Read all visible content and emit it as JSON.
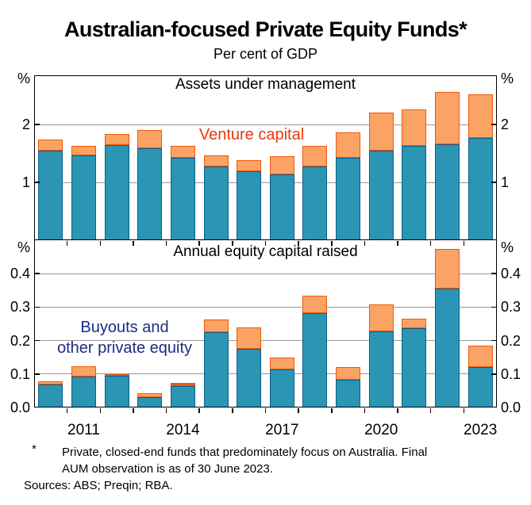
{
  "title": "Australian-focused Private Equity Funds*",
  "subtitle": "Per cent of GDP",
  "panels": [
    {
      "title": "Assets under management",
      "series_label": "Venture capital"
    },
    {
      "title": "Annual equity capital raised",
      "series_label_line1": "Buyouts and",
      "series_label_line2": "other private equity"
    }
  ],
  "axis": {
    "percent": "%",
    "top_ticks": [
      {
        "label": "2",
        "value": 2
      },
      {
        "label": "1",
        "value": 1
      }
    ],
    "bottom_ticks": [
      {
        "label": "0.4",
        "value": 0.4
      },
      {
        "label": "0.3",
        "value": 0.3
      },
      {
        "label": "0.2",
        "value": 0.2
      },
      {
        "label": "0.1",
        "value": 0.1
      },
      {
        "label": "0.0",
        "value": 0
      }
    ],
    "year_labels": [
      {
        "label": "2011",
        "index": 1
      },
      {
        "label": "2014",
        "index": 4
      },
      {
        "label": "2017",
        "index": 7
      },
      {
        "label": "2020",
        "index": 10
      },
      {
        "label": "2023",
        "index": 13
      }
    ]
  },
  "footnote": {
    "marker": "*",
    "line1": "Private, closed-end funds that predominately focus on Australia. Final",
    "line2": "AUM observation is as of 30 June 2023."
  },
  "sources": "Sources: ABS; Preqin; RBA.",
  "colors": {
    "buyouts_fill": "#2B95B4",
    "buyouts_border": "#0B5E8D",
    "venture_fill": "#FBA365",
    "venture_border": "#F2570A",
    "venture_label_text": "#E8380D",
    "buyouts_label_text": "#1B2C85",
    "gridline": "#999999",
    "frame": "#000000"
  },
  "chart_data": [
    {
      "type": "bar",
      "stacked": true,
      "panel": "top",
      "title": "Assets under management",
      "unit": "% of GDP",
      "categories": [
        "2010",
        "2011",
        "2012",
        "2013",
        "2014",
        "2015",
        "2016",
        "2017",
        "2018",
        "2019",
        "2020",
        "2021",
        "2022",
        "2023"
      ],
      "series": [
        {
          "name": "Buyouts and other private equity",
          "values": [
            1.55,
            1.47,
            1.65,
            1.59,
            1.43,
            1.27,
            1.19,
            1.14,
            1.27,
            1.43,
            1.55,
            1.63,
            1.66,
            1.77
          ]
        },
        {
          "name": "Venture capital",
          "values": [
            0.19,
            0.16,
            0.18,
            0.31,
            0.2,
            0.2,
            0.2,
            0.31,
            0.36,
            0.44,
            0.65,
            0.63,
            0.9,
            0.75
          ]
        }
      ],
      "ylabel": "%",
      "ylim": [
        0,
        2.85
      ],
      "yticks": [
        1,
        2
      ],
      "grid": true,
      "xtick_labels": [
        "2011",
        "2014",
        "2017",
        "2020",
        "2023"
      ],
      "legend_position": "in-plot text labels"
    },
    {
      "type": "bar",
      "stacked": true,
      "panel": "bottom",
      "title": "Annual equity capital raised",
      "unit": "% of GDP",
      "categories": [
        "2010",
        "2011",
        "2012",
        "2013",
        "2014",
        "2015",
        "2016",
        "2017",
        "2018",
        "2019",
        "2020",
        "2021",
        "2022",
        "2023"
      ],
      "series": [
        {
          "name": "Buyouts and other private equity",
          "values": [
            0.068,
            0.092,
            0.095,
            0.03,
            0.065,
            0.225,
            0.175,
            0.114,
            0.282,
            0.082,
            0.228,
            0.236,
            0.355,
            0.122
          ]
        },
        {
          "name": "Venture capital",
          "values": [
            0.01,
            0.032,
            0.004,
            0.012,
            0.008,
            0.037,
            0.065,
            0.036,
            0.053,
            0.038,
            0.08,
            0.03,
            0.12,
            0.063
          ]
        }
      ],
      "ylabel": "%",
      "ylim": [
        0,
        0.5
      ],
      "yticks": [
        0,
        0.1,
        0.2,
        0.3,
        0.4
      ],
      "grid": true,
      "xtick_labels": [
        "2011",
        "2014",
        "2017",
        "2020",
        "2023"
      ],
      "legend_position": "in-plot text labels"
    }
  ]
}
